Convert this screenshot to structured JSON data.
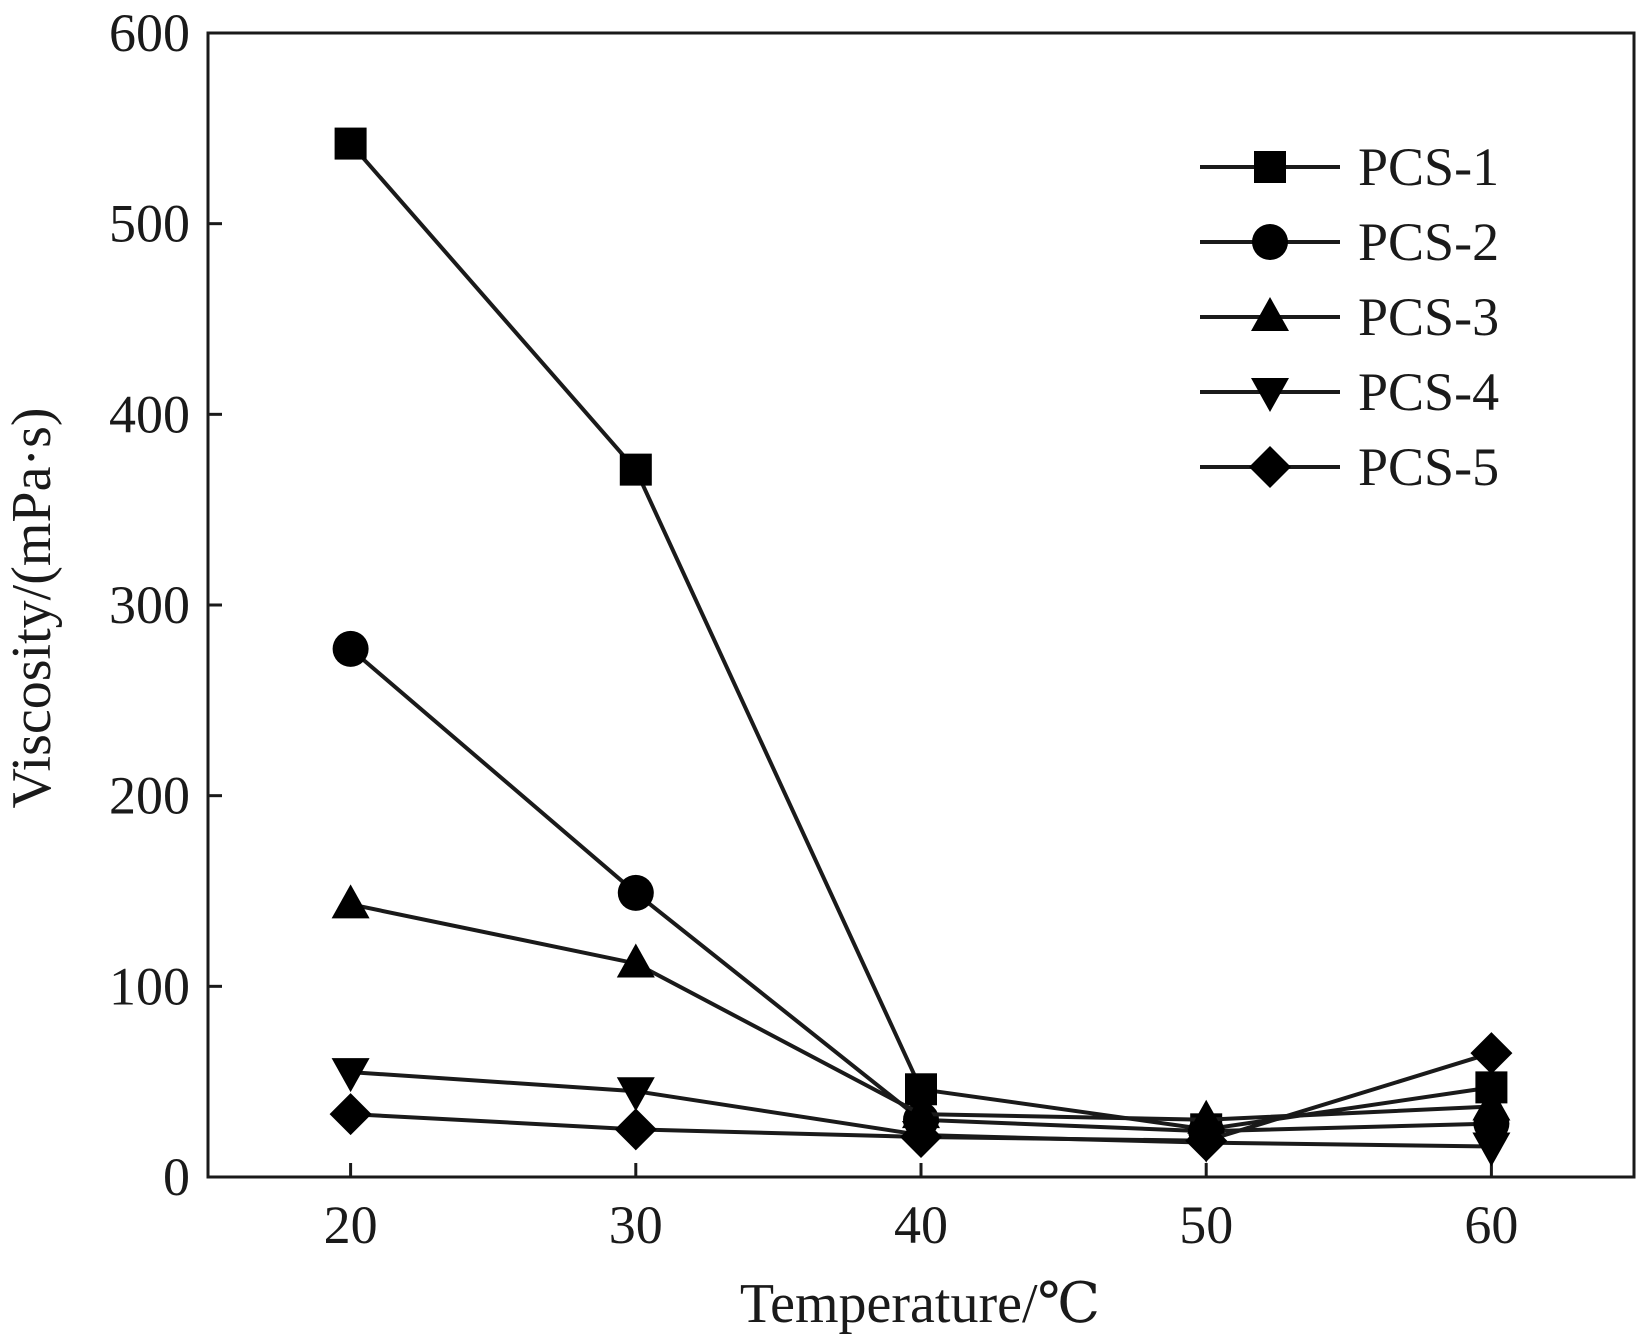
{
  "chart_data": {
    "type": "line",
    "title": "",
    "xlabel": "Temperature/℃",
    "ylabel": "Viscosity/(mPa·s)",
    "x": [
      20,
      30,
      40,
      50,
      60
    ],
    "xlim": [
      15,
      65
    ],
    "ylim": [
      0,
      600
    ],
    "xticks": [
      "20",
      "30",
      "40",
      "50",
      "60"
    ],
    "yticks": [
      "0",
      "100",
      "200",
      "300",
      "400",
      "500",
      "600"
    ],
    "grid": false,
    "legend_position": "top-right",
    "series": [
      {
        "name": "PCS-1",
        "marker": "square",
        "values": [
          542,
          371,
          46,
          25,
          47
        ]
      },
      {
        "name": "PCS-2",
        "marker": "circle",
        "values": [
          277,
          149,
          30,
          24,
          28
        ]
      },
      {
        "name": "PCS-3",
        "marker": "triangle-up",
        "values": [
          143,
          112,
          33,
          30,
          37
        ]
      },
      {
        "name": "PCS-4",
        "marker": "triangle-down",
        "values": [
          55,
          45,
          22,
          18,
          16
        ]
      },
      {
        "name": "PCS-5",
        "marker": "diamond",
        "values": [
          33,
          25,
          21,
          19,
          65
        ]
      }
    ],
    "colors": {
      "line": "#1a1a1a",
      "marker": "#000000",
      "axis": "#1a1a1a"
    }
  }
}
